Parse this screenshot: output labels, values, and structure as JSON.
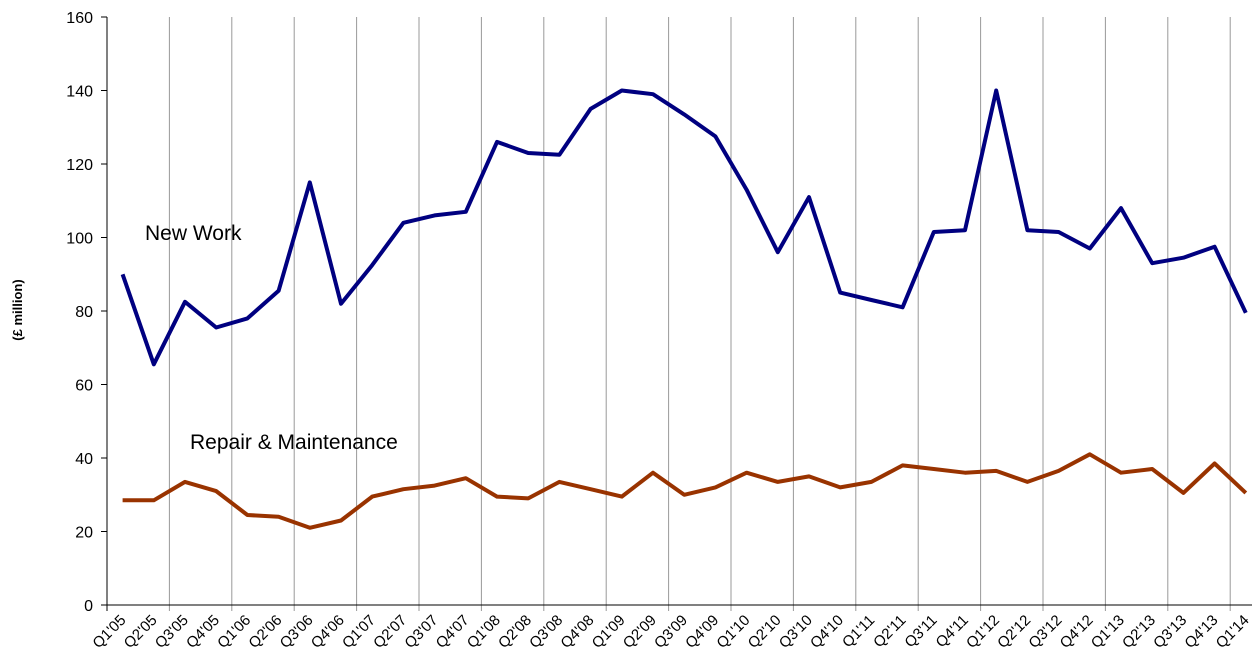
{
  "chart_data": {
    "type": "line",
    "y_label": "(£ million)",
    "categories": [
      "Q1'05",
      "Q2'05",
      "Q3'05",
      "Q4'05",
      "Q1'06",
      "Q2'06",
      "Q3'06",
      "Q4'06",
      "Q1'07",
      "Q2'07",
      "Q3'07",
      "Q4'07",
      "Q1'08",
      "Q2'08",
      "Q3'08",
      "Q4'08",
      "Q1'09",
      "Q2'09",
      "Q3'09",
      "Q4'09",
      "Q1'10",
      "Q2'10",
      "Q3'10",
      "Q4'10",
      "Q1'11",
      "Q2'11",
      "Q3'11",
      "Q4'11",
      "Q1'12",
      "Q2'12",
      "Q3'12",
      "Q4'12",
      "Q1'13",
      "Q2'13",
      "Q3'13",
      "Q4'13",
      "Q1'14"
    ],
    "series": [
      {
        "name": "New Work",
        "color": "#000080",
        "values": [
          90,
          65.5,
          82.5,
          75.5,
          78,
          85.5,
          115,
          82,
          92.5,
          104,
          106,
          107,
          126,
          123,
          122.5,
          135,
          140,
          139,
          133.5,
          127.5,
          113,
          96,
          111,
          85,
          83,
          81,
          101.5,
          102,
          140,
          102,
          101.5,
          97,
          108,
          93,
          94.5,
          97.5,
          79.5
        ]
      },
      {
        "name": "Repair & Maintenance",
        "color": "#993300",
        "values": [
          28.5,
          28.5,
          33.5,
          31,
          24.5,
          24,
          21,
          23,
          29.5,
          31.5,
          32.5,
          34.5,
          29.5,
          29,
          33.5,
          31.5,
          29.5,
          36,
          30,
          32,
          36,
          33.5,
          35,
          32,
          33.5,
          38,
          37,
          36,
          36.5,
          33.5,
          36.5,
          41,
          36,
          37,
          30.5,
          38.5,
          30.5
        ]
      }
    ],
    "ylim": [
      0,
      160
    ],
    "yticks": [
      0,
      20,
      40,
      60,
      80,
      100,
      120,
      140,
      160
    ],
    "grid": true
  }
}
